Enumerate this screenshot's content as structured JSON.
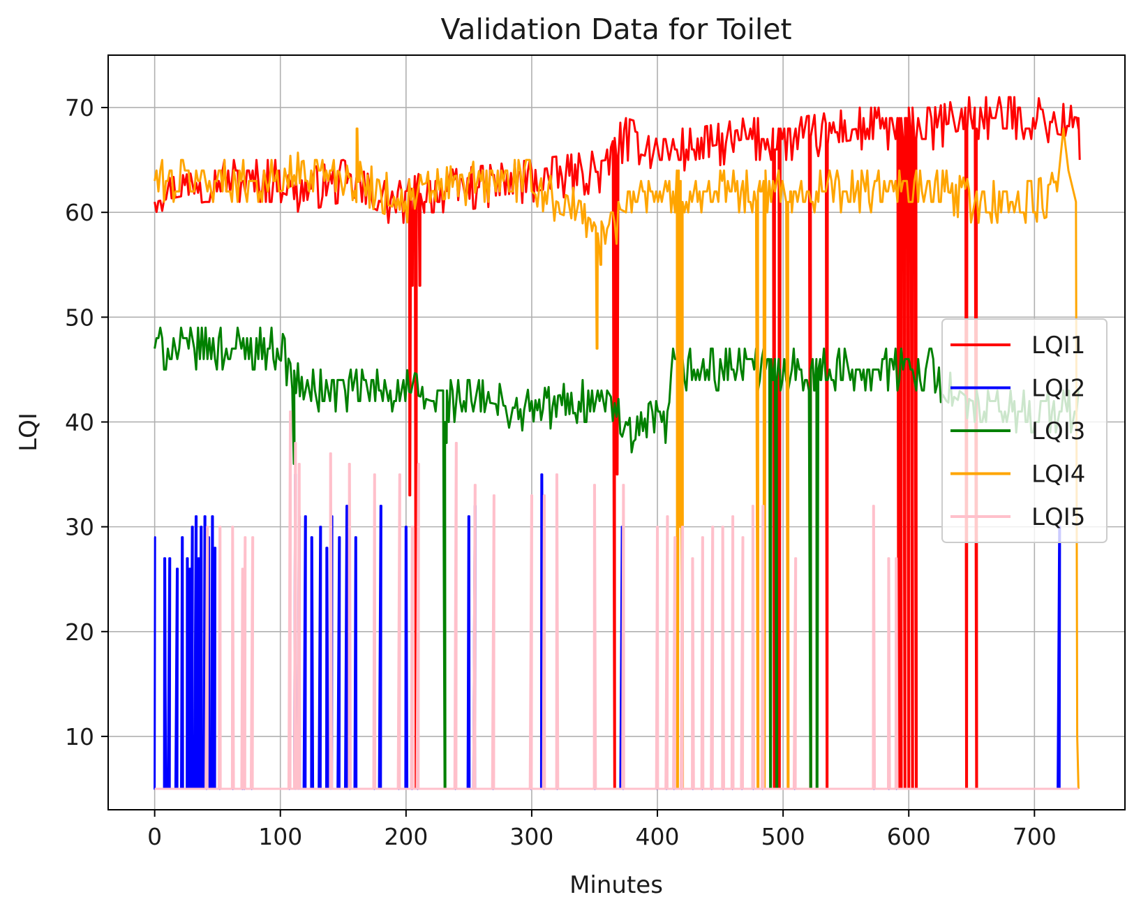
{
  "chart_data": {
    "type": "line",
    "title": "Validation Data for Toilet",
    "xlabel": "Minutes",
    "ylabel": "LQI",
    "xlim": [
      -37,
      772
    ],
    "ylim": [
      3,
      75
    ],
    "xticks": [
      0,
      100,
      200,
      300,
      400,
      500,
      600,
      700
    ],
    "yticks": [
      10,
      20,
      30,
      40,
      50,
      60,
      70
    ],
    "grid": true,
    "legend_position": "center-right",
    "series": [
      {
        "name": "LQI1",
        "color": "#ff0000",
        "base": [
          [
            0,
            62
          ],
          [
            40,
            63
          ],
          [
            100,
            63
          ],
          [
            115,
            62
          ],
          [
            150,
            63
          ],
          [
            165,
            62
          ],
          [
            180,
            61
          ],
          [
            200,
            61
          ],
          [
            215,
            62
          ],
          [
            230,
            62
          ],
          [
            300,
            63
          ],
          [
            360,
            64
          ],
          [
            365,
            66
          ],
          [
            375,
            67
          ],
          [
            400,
            66
          ],
          [
            430,
            66
          ],
          [
            470,
            67
          ],
          [
            510,
            67
          ],
          [
            560,
            68
          ],
          [
            600,
            68
          ],
          [
            620,
            68
          ],
          [
            645,
            69
          ],
          [
            700,
            69
          ],
          [
            735,
            68
          ]
        ],
        "noise": 2,
        "dips": [
          [
            203,
            33
          ],
          [
            205,
            53
          ],
          [
            208,
            5
          ],
          [
            211,
            53
          ],
          [
            215,
            61
          ],
          [
            366,
            5
          ],
          [
            368,
            35
          ],
          [
            493,
            5
          ],
          [
            497,
            5
          ],
          [
            522,
            5
          ],
          [
            535,
            5
          ],
          [
            592,
            5
          ],
          [
            594,
            5
          ],
          [
            597,
            5
          ],
          [
            600,
            5
          ],
          [
            603,
            5
          ],
          [
            606,
            5
          ],
          [
            646,
            5
          ],
          [
            654,
            5
          ]
        ],
        "tail": [
          [
            735,
            69
          ],
          [
            736,
            65
          ]
        ]
      },
      {
        "name": "LQI2",
        "color": "#0000ff",
        "base": [
          [
            0,
            5
          ],
          [
            735,
            5
          ]
        ],
        "noise": 0,
        "dips": [
          [
            0,
            29
          ],
          [
            2,
            5
          ],
          [
            8,
            27
          ],
          [
            10,
            5
          ],
          [
            12,
            27
          ],
          [
            15,
            5
          ],
          [
            18,
            26
          ],
          [
            20,
            5
          ],
          [
            22,
            29
          ],
          [
            24,
            5
          ],
          [
            26,
            27
          ],
          [
            28,
            26
          ],
          [
            30,
            30
          ],
          [
            33,
            31
          ],
          [
            35,
            27
          ],
          [
            37,
            30
          ],
          [
            40,
            31
          ],
          [
            43,
            29
          ],
          [
            46,
            31
          ],
          [
            48,
            28
          ],
          [
            50,
            5
          ],
          [
            108,
            5
          ],
          [
            112,
            35
          ],
          [
            115,
            31
          ],
          [
            120,
            31
          ],
          [
            125,
            29
          ],
          [
            128,
            5
          ],
          [
            132,
            30
          ],
          [
            134,
            5
          ],
          [
            137,
            28
          ],
          [
            139,
            5
          ],
          [
            141,
            31
          ],
          [
            144,
            5
          ],
          [
            147,
            29
          ],
          [
            149,
            5
          ],
          [
            153,
            32
          ],
          [
            156,
            5
          ],
          [
            160,
            29
          ],
          [
            163,
            5
          ],
          [
            180,
            32
          ],
          [
            182,
            5
          ],
          [
            200,
            30
          ],
          [
            202,
            5
          ],
          [
            250,
            31
          ],
          [
            252,
            5
          ],
          [
            255,
            32
          ],
          [
            257,
            5
          ],
          [
            308,
            35
          ],
          [
            310,
            5
          ],
          [
            372,
            30
          ],
          [
            374,
            5
          ],
          [
            720,
            30
          ],
          [
            722,
            5
          ]
        ],
        "tail": []
      },
      {
        "name": "LQI3",
        "color": "#008000",
        "base": [
          [
            0,
            47
          ],
          [
            50,
            47
          ],
          [
            100,
            47
          ],
          [
            110,
            44
          ],
          [
            120,
            43
          ],
          [
            150,
            43
          ],
          [
            200,
            43
          ],
          [
            220,
            42
          ],
          [
            260,
            42
          ],
          [
            300,
            41
          ],
          [
            340,
            42
          ],
          [
            360,
            42
          ],
          [
            370,
            40
          ],
          [
            380,
            38
          ],
          [
            395,
            40
          ],
          [
            408,
            40
          ],
          [
            412,
            45
          ],
          [
            460,
            45
          ],
          [
            500,
            45
          ],
          [
            530,
            45
          ],
          [
            560,
            45
          ],
          [
            600,
            45
          ],
          [
            620,
            45
          ],
          [
            630,
            43
          ],
          [
            650,
            41
          ],
          [
            700,
            41
          ],
          [
            735,
            41
          ]
        ],
        "noise": 2,
        "dips": [
          [
            111,
            36
          ],
          [
            231,
            5
          ],
          [
            232,
            38
          ],
          [
            490,
            5
          ],
          [
            492,
            44
          ],
          [
            495,
            5
          ],
          [
            497,
            45
          ],
          [
            522,
            5
          ],
          [
            525,
            43
          ],
          [
            527,
            5
          ],
          [
            530,
            44
          ]
        ],
        "tail": []
      },
      {
        "name": "LQI4",
        "color": "#ffa500",
        "base": [
          [
            0,
            63
          ],
          [
            100,
            63
          ],
          [
            120,
            64
          ],
          [
            145,
            64
          ],
          [
            160,
            63
          ],
          [
            180,
            62
          ],
          [
            200,
            61
          ],
          [
            220,
            62
          ],
          [
            260,
            63
          ],
          [
            300,
            63
          ],
          [
            320,
            61
          ],
          [
            340,
            60
          ],
          [
            350,
            59
          ],
          [
            355,
            57
          ],
          [
            362,
            59
          ],
          [
            370,
            59
          ],
          [
            375,
            62
          ],
          [
            400,
            62
          ],
          [
            450,
            62
          ],
          [
            500,
            62
          ],
          [
            560,
            62
          ],
          [
            600,
            62
          ],
          [
            630,
            62
          ],
          [
            650,
            61
          ],
          [
            700,
            61
          ],
          [
            718,
            62
          ]
        ],
        "noise": 2,
        "dips": [
          [
            161,
            68
          ],
          [
            163,
            63
          ],
          [
            352,
            47
          ],
          [
            355,
            55
          ],
          [
            416,
            5
          ],
          [
            418,
            30
          ],
          [
            420,
            5
          ],
          [
            480,
            5
          ],
          [
            482,
            62
          ],
          [
            485,
            5
          ],
          [
            504,
            5
          ],
          [
            506,
            62
          ]
        ],
        "tail": [
          [
            718,
            62
          ],
          [
            723,
            68
          ],
          [
            727,
            64
          ],
          [
            733,
            61
          ],
          [
            734,
            10
          ],
          [
            735,
            5
          ]
        ]
      },
      {
        "name": "LQI5",
        "color": "#ffc0cb",
        "base": [
          [
            0,
            5
          ],
          [
            735,
            5
          ]
        ],
        "noise": 0,
        "dips": [
          [
            40,
            5
          ],
          [
            42,
            30
          ],
          [
            44,
            5
          ],
          [
            52,
            30
          ],
          [
            54,
            5
          ],
          [
            62,
            30
          ],
          [
            64,
            5
          ],
          [
            70,
            26
          ],
          [
            72,
            29
          ],
          [
            74,
            5
          ],
          [
            78,
            29
          ],
          [
            80,
            5
          ],
          [
            106,
            5
          ],
          [
            108,
            41
          ],
          [
            112,
            38
          ],
          [
            115,
            36
          ],
          [
            140,
            37
          ],
          [
            155,
            36
          ],
          [
            175,
            35
          ],
          [
            195,
            35
          ],
          [
            205,
            30
          ],
          [
            210,
            36
          ],
          [
            240,
            38
          ],
          [
            255,
            34
          ],
          [
            270,
            33
          ],
          [
            300,
            33
          ],
          [
            310,
            33
          ],
          [
            320,
            35
          ],
          [
            350,
            34
          ],
          [
            354,
            5
          ],
          [
            373,
            34
          ],
          [
            375,
            5
          ],
          [
            400,
            30
          ],
          [
            402,
            5
          ],
          [
            408,
            31
          ],
          [
            410,
            5
          ],
          [
            414,
            29
          ],
          [
            416,
            5
          ],
          [
            420,
            30
          ],
          [
            422,
            5
          ],
          [
            428,
            27
          ],
          [
            430,
            5
          ],
          [
            436,
            29
          ],
          [
            438,
            5
          ],
          [
            444,
            30
          ],
          [
            446,
            5
          ],
          [
            452,
            30
          ],
          [
            454,
            5
          ],
          [
            460,
            31
          ],
          [
            462,
            5
          ],
          [
            468,
            29
          ],
          [
            470,
            5
          ],
          [
            476,
            32
          ],
          [
            478,
            5
          ],
          [
            484,
            32
          ],
          [
            486,
            5
          ],
          [
            510,
            27
          ],
          [
            512,
            5
          ],
          [
            572,
            32
          ],
          [
            574,
            5
          ],
          [
            584,
            27
          ],
          [
            586,
            5
          ],
          [
            590,
            27
          ],
          [
            592,
            5
          ]
        ],
        "tail": []
      }
    ]
  }
}
